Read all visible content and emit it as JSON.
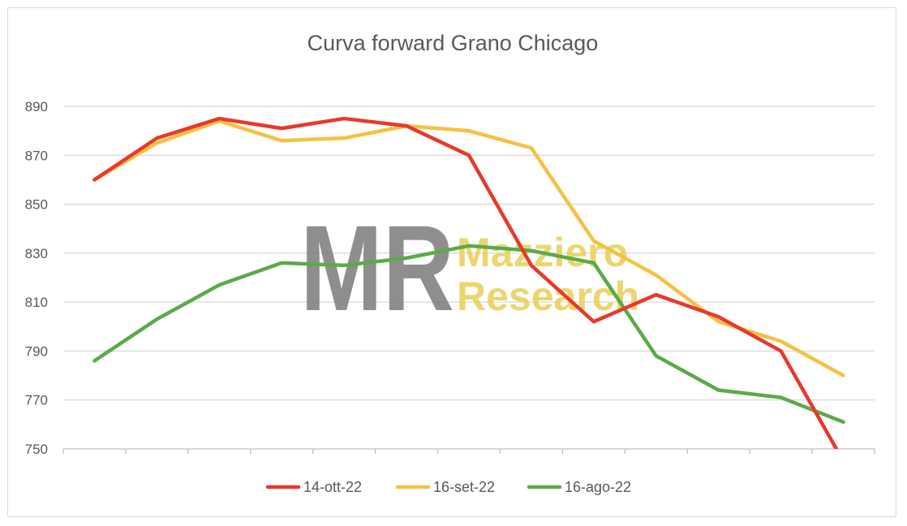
{
  "chart_data": {
    "type": "line",
    "title": "Curva forward Grano Chicago",
    "xlabel": "",
    "ylabel": "",
    "ylim": [
      750,
      890
    ],
    "yticks": [
      750,
      770,
      790,
      810,
      830,
      850,
      870,
      890
    ],
    "x": [
      1,
      2,
      3,
      4,
      5,
      6,
      7,
      8,
      9,
      10,
      11,
      12,
      13
    ],
    "grid": true,
    "legend_position": "bottom",
    "series": [
      {
        "name": "14-ott-22",
        "color": "#e8392a",
        "values": [
          860,
          877,
          885,
          881,
          885,
          882,
          870,
          825,
          802,
          813,
          804,
          790,
          745
        ]
      },
      {
        "name": "16-set-22",
        "color": "#f4c142",
        "values": [
          860,
          875,
          884,
          876,
          877,
          882,
          880,
          873,
          835,
          821,
          802,
          794,
          780
        ]
      },
      {
        "name": "16-ago-22",
        "color": "#5aaa4a",
        "values": [
          786,
          803,
          817,
          826,
          825,
          828,
          833,
          831,
          826,
          788,
          774,
          771,
          761
        ]
      }
    ]
  },
  "watermark": {
    "logo_text": "MR",
    "line1": "Mazziero",
    "line2": "Research"
  }
}
